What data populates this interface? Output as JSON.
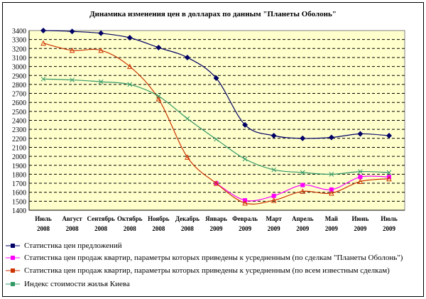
{
  "chart_data": {
    "type": "line",
    "title": "Динамика изменения цен в долларах по данным \"Планеты Оболонь\"",
    "xlabel": "",
    "ylabel": "",
    "ylim": [
      1400,
      3400
    ],
    "yticks": [
      1400,
      1500,
      1600,
      1700,
      1800,
      1900,
      2000,
      2100,
      2200,
      2300,
      2400,
      2500,
      2600,
      2700,
      2800,
      2900,
      3000,
      3100,
      3200,
      3300,
      3400
    ],
    "grid": "horizontal-dashed",
    "legend": "bottom",
    "categories": [
      [
        "Июль",
        "2008"
      ],
      [
        "Август",
        "2008"
      ],
      [
        "Сентябрь",
        "2008"
      ],
      [
        "Октябрь",
        "2008"
      ],
      [
        "Ноябрь",
        "2008"
      ],
      [
        "Декабрь",
        "2008"
      ],
      [
        "Январь",
        "2009"
      ],
      [
        "Февраль",
        "2009"
      ],
      [
        "Март",
        "2009"
      ],
      [
        "Апрель",
        "2009"
      ],
      [
        "Май",
        "2009"
      ],
      [
        "Июнь",
        "2009"
      ],
      [
        "Июль",
        "2009"
      ]
    ],
    "series": [
      {
        "name": "Статистика цен предложений",
        "color": "#000066",
        "marker": "diamond",
        "values": [
          3400,
          3390,
          3370,
          3320,
          3210,
          3100,
          2870,
          2350,
          2230,
          2200,
          2210,
          2250,
          2230
        ]
      },
      {
        "name": "Статистика цен продаж квартир, параметры которых приведены к усредненным (по сделкам \"Планеты Оболонь\")",
        "color": "#ff00ff",
        "marker": "square",
        "values": [
          null,
          null,
          null,
          null,
          null,
          null,
          1700,
          1510,
          1560,
          1680,
          1630,
          1770,
          1770
        ]
      },
      {
        "name": "Статистика цен продаж квартир, параметры которых приведены к усредненным (по всем известным сделкам)",
        "color": "#cc3300",
        "marker": "triangle",
        "values": [
          3260,
          3180,
          3180,
          3000,
          2640,
          1990,
          1700,
          1480,
          1510,
          1610,
          1590,
          1720,
          1750
        ]
      },
      {
        "name": "Индекс стоимости жилья Киева",
        "color": "#339966",
        "marker": "x",
        "values": [
          2860,
          2850,
          2830,
          2800,
          2670,
          2420,
          2190,
          1970,
          1850,
          1820,
          1800,
          1830,
          1820
        ]
      }
    ]
  }
}
